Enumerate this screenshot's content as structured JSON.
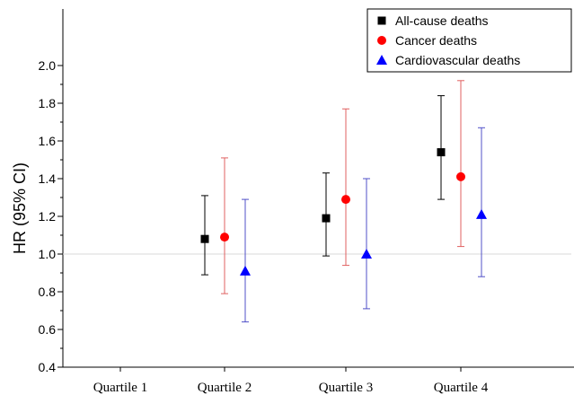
{
  "chart_data": {
    "type": "scatter",
    "title": "",
    "xlabel": "",
    "ylabel": "HR (95% CI)",
    "categories": [
      "Quartile 1",
      "Quartile 2",
      "Quartile 3",
      "Quartile 4"
    ],
    "ylim": [
      0.4,
      2.0
    ],
    "yticks": [
      "0.4",
      "0.6",
      "0.8",
      "1.0",
      "1.2",
      "1.4",
      "1.6",
      "1.8",
      "2.0"
    ],
    "reference_line": 1.0,
    "grid": false,
    "legend_position": "top-right",
    "series": [
      {
        "name": "All-cause deaths",
        "marker": "square",
        "color": "#000000",
        "errorbar_color": "#000000",
        "points": [
          {
            "category": "Quartile 2",
            "hr": 1.08,
            "lower": 0.89,
            "upper": 1.31
          },
          {
            "category": "Quartile 3",
            "hr": 1.19,
            "lower": 0.99,
            "upper": 1.43
          },
          {
            "category": "Quartile 4",
            "hr": 1.54,
            "lower": 1.29,
            "upper": 1.84
          }
        ]
      },
      {
        "name": "Cancer deaths",
        "marker": "circle",
        "color": "#ff0000",
        "errorbar_color": "#e06060",
        "points": [
          {
            "category": "Quartile 2",
            "hr": 1.09,
            "lower": 0.79,
            "upper": 1.51
          },
          {
            "category": "Quartile 3",
            "hr": 1.29,
            "lower": 0.94,
            "upper": 1.77
          },
          {
            "category": "Quartile 4",
            "hr": 1.41,
            "lower": 1.04,
            "upper": 1.92
          }
        ]
      },
      {
        "name": "Cardiovascular deaths",
        "marker": "triangle",
        "color": "#0000ff",
        "errorbar_color": "#5050c8",
        "points": [
          {
            "category": "Quartile 2",
            "hr": 0.91,
            "lower": 0.64,
            "upper": 1.29
          },
          {
            "category": "Quartile 3",
            "hr": 1.0,
            "lower": 0.71,
            "upper": 1.4
          },
          {
            "category": "Quartile 4",
            "hr": 1.21,
            "lower": 0.88,
            "upper": 1.67
          }
        ]
      }
    ]
  }
}
